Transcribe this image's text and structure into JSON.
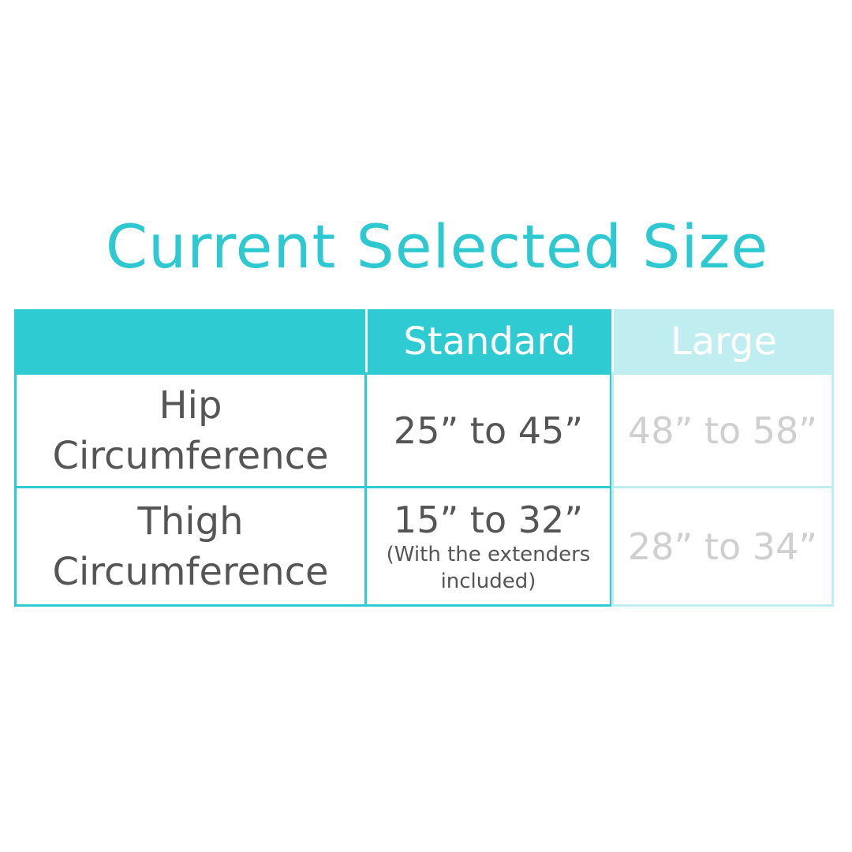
{
  "title": "Current Selected Size",
  "colors": {
    "accent": "#2ECBD3",
    "accent_light": "#C0EEF0",
    "text": "#555555",
    "muted_text": "#CFCFCF"
  },
  "table": {
    "columns": [
      "",
      "Standard",
      "Large"
    ],
    "selected_column": "Standard",
    "rows": [
      {
        "label_line1": "Hip",
        "label_line2": "Circumference",
        "standard": "25” to 45”",
        "standard_note_line1": "",
        "standard_note_line2": "",
        "large": "48” to 58”"
      },
      {
        "label_line1": "Thigh",
        "label_line2": "Circumference",
        "standard": "15” to 32”",
        "standard_note_line1": "(With the  extenders",
        "standard_note_line2": "included)",
        "large": "28” to 34”"
      }
    ]
  }
}
